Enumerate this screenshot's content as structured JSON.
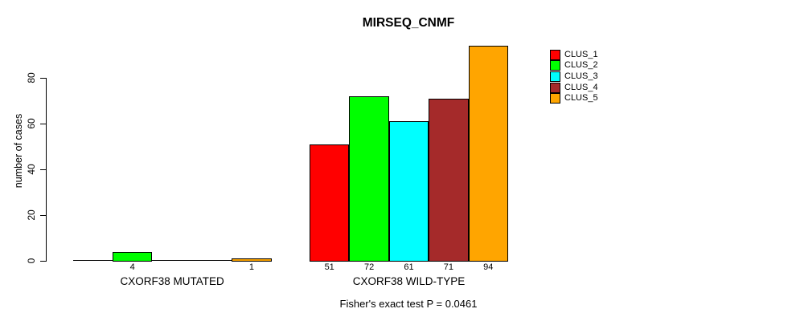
{
  "figure": {
    "title": "MIRSEQ_CNMF",
    "caption": "Fisher's exact test P = 0.0461"
  },
  "chart_data": {
    "type": "bar",
    "title": "MIRSEQ_CNMF",
    "xlabel": "",
    "ylabel": "number of cases",
    "ylim": [
      0,
      94
    ],
    "yticks": [
      0,
      20,
      40,
      60,
      80
    ],
    "grid": false,
    "bar_outline_color": "#000000",
    "categories": [
      "CXORF38 MUTATED",
      "CXORF38 WILD-TYPE"
    ],
    "series": [
      {
        "name": "CLUS_1",
        "color": "#FF0000",
        "values": [
          0,
          51
        ]
      },
      {
        "name": "CLUS_2",
        "color": "#00FF00",
        "values": [
          4,
          72
        ]
      },
      {
        "name": "CLUS_3",
        "color": "#00FFFF",
        "values": [
          0,
          61
        ]
      },
      {
        "name": "CLUS_4",
        "color": "#A52A2A",
        "values": [
          0,
          71
        ]
      },
      {
        "name": "CLUS_5",
        "color": "#FFA500",
        "values": [
          1,
          94
        ]
      }
    ],
    "bar_value_labels_shown": [
      "4",
      "1",
      "51",
      "72",
      "61",
      "71",
      "94"
    ],
    "legend_position": "top-right",
    "legend_entries": [
      "CLUS_1",
      "CLUS_2",
      "CLUS_3",
      "CLUS_4",
      "CLUS_5"
    ],
    "annotation": "Fisher's exact test P = 0.0461"
  }
}
